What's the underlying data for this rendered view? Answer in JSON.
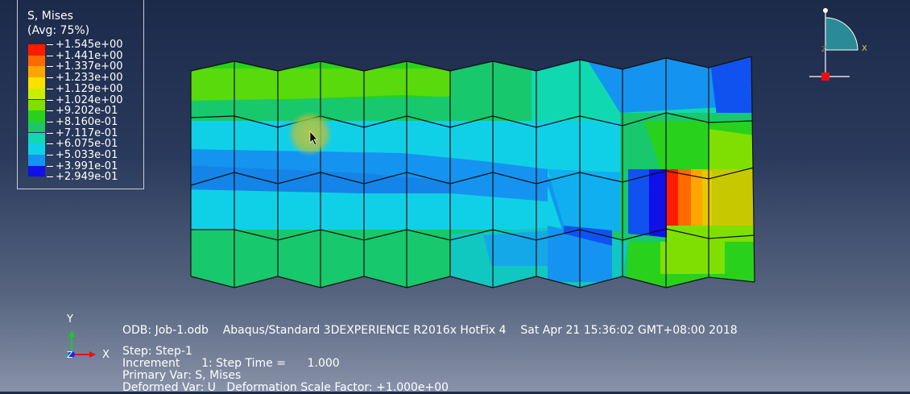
{
  "legend": {
    "title_line1": "S, Mises",
    "title_line2": "(Avg: 75%)",
    "entries": [
      {
        "value": "+1.545e+00",
        "color": "#ff1a00"
      },
      {
        "value": "+1.441e+00",
        "color": "#ff6a00"
      },
      {
        "value": "+1.337e+00",
        "color": "#ffa500"
      },
      {
        "value": "+1.233e+00",
        "color": "#ffe100"
      },
      {
        "value": "+1.129e+00",
        "color": "#c8ef00"
      },
      {
        "value": "+1.024e+00",
        "color": "#7fe000"
      },
      {
        "value": "+9.202e-01",
        "color": "#28d21c"
      },
      {
        "value": "+8.160e-01",
        "color": "#1cc864"
      },
      {
        "value": "+7.117e-01",
        "color": "#10d8b0"
      },
      {
        "value": "+6.075e-01",
        "color": "#10d0e8"
      },
      {
        "value": "+5.033e-01",
        "color": "#1494f0"
      },
      {
        "value": "+3.991e-01",
        "color": "#1052f0"
      },
      {
        "value": "+2.949e-01",
        "color": "#1010e8"
      }
    ]
  },
  "triad_main": {
    "x_label": "X",
    "y_label": "Y",
    "z_label": "Z"
  },
  "triad_view": {
    "x_label": "X",
    "z_label": "Z"
  },
  "info": {
    "odb": "ODB: Job-1.odb",
    "version": "Abaqus/Standard 3DEXPERIENCE R2016x HotFix 4",
    "date": "Sat Apr 21 15:36:02 GMT+08:00 2018",
    "step": "Step: Step-1",
    "increment": "Increment      1: Step Time =      1.000",
    "primary_var": "Primary Var: S, Mises",
    "deformed_var": "Deformed Var: U   Deformation Scale Factor: +1.000e+00"
  },
  "colors": {
    "mesh_line": "#111111",
    "cursor_highlight": "#b8c840"
  }
}
